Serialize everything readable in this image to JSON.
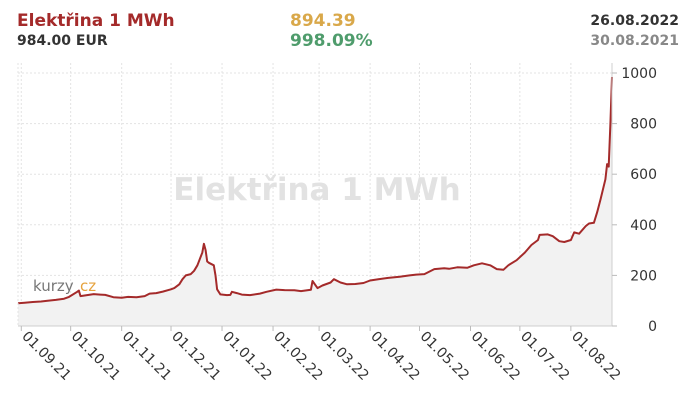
{
  "header": {
    "title": "Elektřina 1 MWh",
    "price": "984.00 EUR",
    "change_abs": "894.39",
    "change_pct": "998.09%",
    "date_end": "26.08.2022",
    "date_start": "30.08.2021"
  },
  "watermark": "Elektřina 1 MWh",
  "logo": {
    "part1": "kurzy",
    "part2": "cz"
  },
  "colors": {
    "line": "#a42a2a",
    "fill": "#f2f2f2",
    "grid": "#e3e3e3",
    "title": "#a42a2a",
    "change_abs": "#d9a84a",
    "change_pct": "#4f9c6c"
  },
  "chart_data": {
    "type": "area",
    "title": "",
    "xlabel": "",
    "ylabel": "",
    "ylim": [
      0,
      1000
    ],
    "yticks": [
      0,
      200,
      400,
      600,
      800,
      1000
    ],
    "y_axis_side": "right",
    "grid": true,
    "xlim": [
      "2021-08-30",
      "2022-08-26"
    ],
    "xticks": [
      {
        "date": "2021-09-01",
        "label": "01.09.21"
      },
      {
        "date": "2021-10-01",
        "label": "01.10.21"
      },
      {
        "date": "2021-11-01",
        "label": "01.11.21"
      },
      {
        "date": "2021-12-01",
        "label": "01.12.21"
      },
      {
        "date": "2022-01-01",
        "label": "01.01.22"
      },
      {
        "date": "2022-02-01",
        "label": "01.02.22"
      },
      {
        "date": "2022-03-01",
        "label": "01.03.22"
      },
      {
        "date": "2022-04-01",
        "label": "01.04.22"
      },
      {
        "date": "2022-05-01",
        "label": "01.05.22"
      },
      {
        "date": "2022-06-01",
        "label": "01.06.22"
      },
      {
        "date": "2022-07-01",
        "label": "01.07.22"
      },
      {
        "date": "2022-08-01",
        "label": "01.08.22"
      }
    ],
    "series": [
      {
        "points": [
          [
            "2021-08-30",
            89.61
          ],
          [
            "2021-09-03",
            92
          ],
          [
            "2021-09-08",
            95
          ],
          [
            "2021-09-13",
            97
          ],
          [
            "2021-09-17",
            100
          ],
          [
            "2021-09-22",
            103
          ],
          [
            "2021-09-27",
            108
          ],
          [
            "2021-09-30",
            115
          ],
          [
            "2021-10-05",
            135
          ],
          [
            "2021-10-06",
            140
          ],
          [
            "2021-10-07",
            118
          ],
          [
            "2021-10-11",
            122
          ],
          [
            "2021-10-15",
            126
          ],
          [
            "2021-10-19",
            124
          ],
          [
            "2021-10-22",
            123
          ],
          [
            "2021-10-27",
            114
          ],
          [
            "2021-11-01",
            112
          ],
          [
            "2021-11-05",
            115
          ],
          [
            "2021-11-10",
            114
          ],
          [
            "2021-11-15",
            118
          ],
          [
            "2021-11-18",
            128
          ],
          [
            "2021-11-22",
            130
          ],
          [
            "2021-11-26",
            136
          ],
          [
            "2021-12-01",
            145
          ],
          [
            "2021-12-03",
            150
          ],
          [
            "2021-12-06",
            165
          ],
          [
            "2021-12-08",
            185
          ],
          [
            "2021-12-10",
            200
          ],
          [
            "2021-12-13",
            205
          ],
          [
            "2021-12-15",
            218
          ],
          [
            "2021-12-17",
            240
          ],
          [
            "2021-12-20",
            290
          ],
          [
            "2021-12-21",
            325
          ],
          [
            "2021-12-22",
            300
          ],
          [
            "2021-12-23",
            255
          ],
          [
            "2021-12-24",
            250
          ],
          [
            "2021-12-27",
            240
          ],
          [
            "2021-12-28",
            200
          ],
          [
            "2021-12-29",
            145
          ],
          [
            "2021-12-31",
            125
          ],
          [
            "2022-01-04",
            122
          ],
          [
            "2022-01-06",
            123
          ],
          [
            "2022-01-07",
            135
          ],
          [
            "2022-01-10",
            130
          ],
          [
            "2022-01-13",
            124
          ],
          [
            "2022-01-18",
            122
          ],
          [
            "2022-01-24",
            128
          ],
          [
            "2022-01-28",
            135
          ],
          [
            "2022-02-03",
            144
          ],
          [
            "2022-02-08",
            142
          ],
          [
            "2022-02-14",
            141
          ],
          [
            "2022-02-18",
            138
          ],
          [
            "2022-02-24",
            143
          ],
          [
            "2022-02-25",
            178
          ],
          [
            "2022-02-28",
            150
          ],
          [
            "2022-03-03",
            160
          ],
          [
            "2022-03-08",
            172
          ],
          [
            "2022-03-10",
            185
          ],
          [
            "2022-03-14",
            172
          ],
          [
            "2022-03-18",
            165
          ],
          [
            "2022-03-23",
            166
          ],
          [
            "2022-03-28",
            170
          ],
          [
            "2022-04-01",
            180
          ],
          [
            "2022-04-06",
            185
          ],
          [
            "2022-04-12",
            190
          ],
          [
            "2022-04-19",
            195
          ],
          [
            "2022-04-25",
            200
          ],
          [
            "2022-04-29",
            203
          ],
          [
            "2022-05-04",
            205
          ],
          [
            "2022-05-10",
            225
          ],
          [
            "2022-05-16",
            228
          ],
          [
            "2022-05-19",
            226
          ],
          [
            "2022-05-24",
            232
          ],
          [
            "2022-05-30",
            230
          ],
          [
            "2022-06-03",
            240
          ],
          [
            "2022-06-08",
            248
          ],
          [
            "2022-06-13",
            240
          ],
          [
            "2022-06-17",
            225
          ],
          [
            "2022-06-21",
            222
          ],
          [
            "2022-06-24",
            240
          ],
          [
            "2022-06-29",
            260
          ],
          [
            "2022-07-04",
            290
          ],
          [
            "2022-07-08",
            320
          ],
          [
            "2022-07-12",
            340
          ],
          [
            "2022-07-13",
            360
          ],
          [
            "2022-07-18",
            362
          ],
          [
            "2022-07-21",
            355
          ],
          [
            "2022-07-25",
            335
          ],
          [
            "2022-07-28",
            332
          ],
          [
            "2022-08-01",
            340
          ],
          [
            "2022-08-03",
            370
          ],
          [
            "2022-08-06",
            365
          ],
          [
            "2022-08-10",
            395
          ],
          [
            "2022-08-12",
            405
          ],
          [
            "2022-08-15",
            408
          ],
          [
            "2022-08-17",
            450
          ],
          [
            "2022-08-19",
            500
          ],
          [
            "2022-08-22",
            580
          ],
          [
            "2022-08-23",
            640
          ],
          [
            "2022-08-24",
            630
          ],
          [
            "2022-08-25",
            800
          ],
          [
            "2022-08-26",
            984
          ]
        ]
      }
    ]
  }
}
